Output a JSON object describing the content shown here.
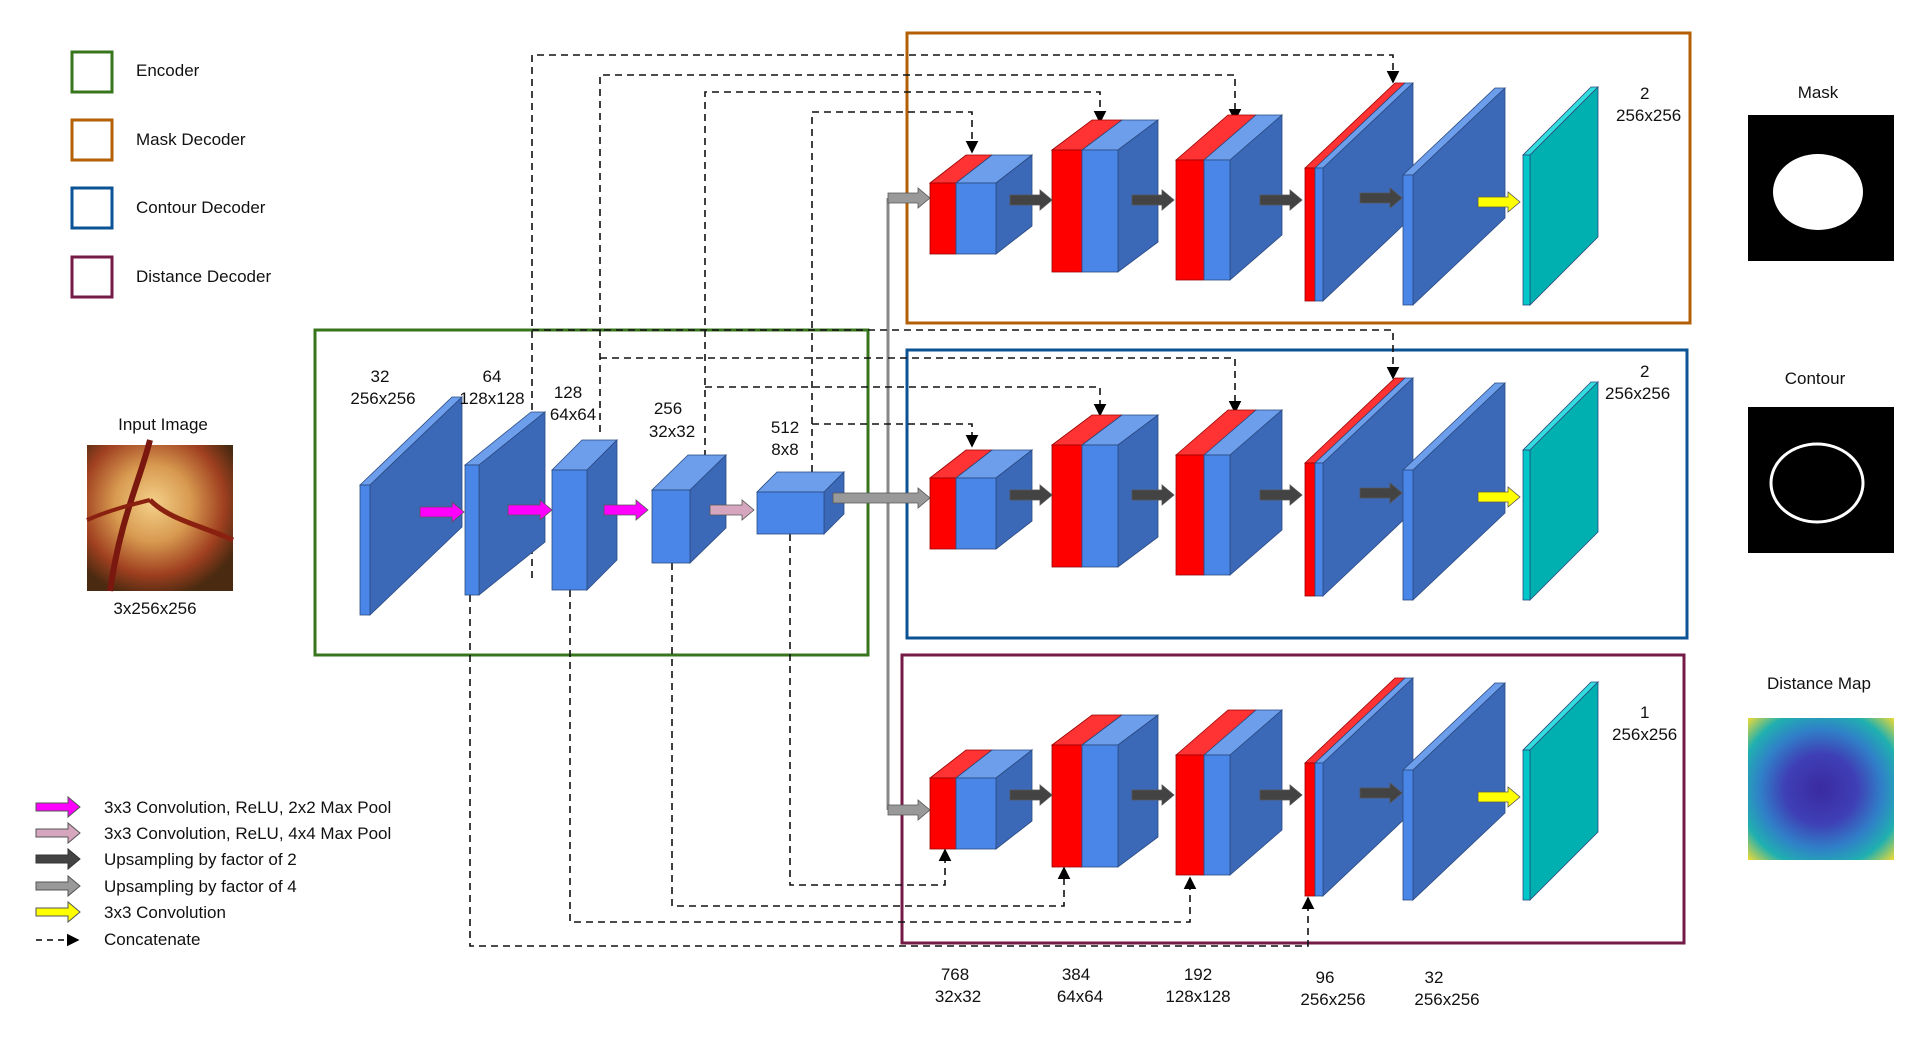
{
  "legend_boxes": [
    {
      "label": "Encoder",
      "color": "#38761d"
    },
    {
      "label": "Mask Decoder",
      "color": "#b45f06"
    },
    {
      "label": "Contour Decoder",
      "color": "#0b5394"
    },
    {
      "label": "Distance Decoder",
      "color": "#741b47"
    }
  ],
  "legend_arrows": [
    {
      "label": "3x3 Convolution, ReLU, 2x2 Max Pool",
      "color": "#ff00ff",
      "icon": "magenta-arrow"
    },
    {
      "label": "3x3 Convolution, ReLU, 4x4 Max Pool",
      "color": "#d5a6bd",
      "icon": "pink-arrow"
    },
    {
      "label": "Upsampling by factor of 2",
      "color": "#434343",
      "icon": "dark-arrow"
    },
    {
      "label": "Upsampling by factor of 4",
      "color": "#999999",
      "icon": "gray-arrow"
    },
    {
      "label": "3x3 Convolution",
      "color": "#ffff00",
      "icon": "yellow-arrow"
    },
    {
      "label": "Concatenate",
      "color": "#000000",
      "icon": "dashed-arrow"
    }
  ],
  "input": {
    "title": "Input Image",
    "size": "3x256x256"
  },
  "encoder_labels": [
    {
      "channels": "32",
      "size": "256x256"
    },
    {
      "channels": "64",
      "size": "128x128"
    },
    {
      "channels": "128",
      "size": "64x64"
    },
    {
      "channels": "256",
      "size": "32x32"
    },
    {
      "channels": "512",
      "size": "8x8"
    }
  ],
  "decoders": [
    {
      "name": "Mask Decoder",
      "output_channels": "2",
      "output_size": "256x256"
    },
    {
      "name": "Contour Decoder",
      "output_channels": "2",
      "output_size": "256x256"
    },
    {
      "name": "Distance Decoder",
      "output_channels": "1",
      "output_size": "256x256"
    }
  ],
  "bottom_labels": [
    {
      "channels": "768",
      "size": "32x32"
    },
    {
      "channels": "384",
      "size": "64x64"
    },
    {
      "channels": "192",
      "size": "128x128"
    },
    {
      "channels": "96",
      "size": "256x256"
    },
    {
      "channels": "32",
      "size": "256x256"
    }
  ],
  "outputs": [
    {
      "title": "Mask"
    },
    {
      "title": "Contour"
    },
    {
      "title": "Distance Map"
    }
  ],
  "colors": {
    "block_front": "#4a86e8",
    "block_top": "#6d9eeb",
    "block_side": "#3c68b8",
    "concat_red": "#ff0000",
    "output_cyan": "#00c8c8"
  }
}
